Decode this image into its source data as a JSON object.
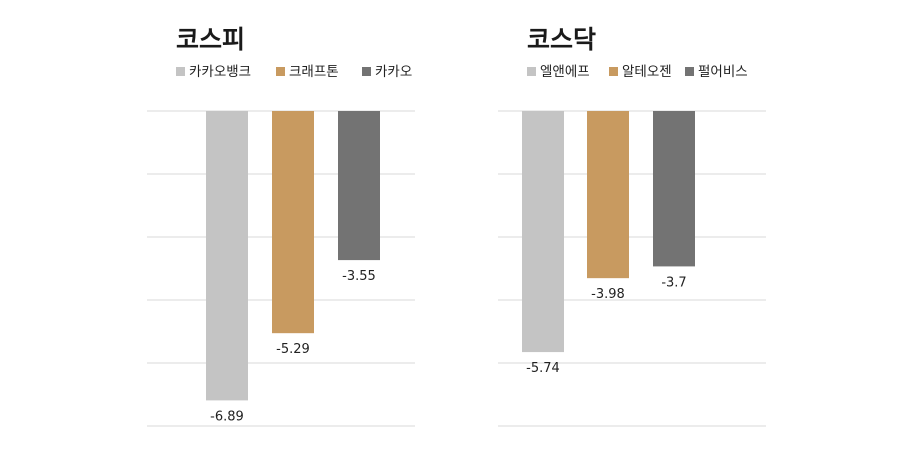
{
  "chart_data": [
    {
      "type": "bar",
      "title": "코스피",
      "categories": [
        "카카오뱅크",
        "크래프톤",
        "카카오"
      ],
      "values": [
        -6.89,
        -5.29,
        -3.55
      ],
      "colors": [
        "#c4c4c4",
        "#c89a60",
        "#737373"
      ],
      "ylim": [
        -7.5,
        0
      ],
      "grid": true,
      "legend": "top-left"
    },
    {
      "type": "bar",
      "title": "코스닥",
      "categories": [
        "엘앤에프",
        "알테오젠",
        "펄어비스"
      ],
      "values": [
        -5.74,
        -3.98,
        -3.7
      ],
      "colors": [
        "#c4c4c4",
        "#c89a60",
        "#737373"
      ],
      "ylim": [
        -7.5,
        0
      ],
      "grid": true,
      "legend": "top-left"
    }
  ]
}
